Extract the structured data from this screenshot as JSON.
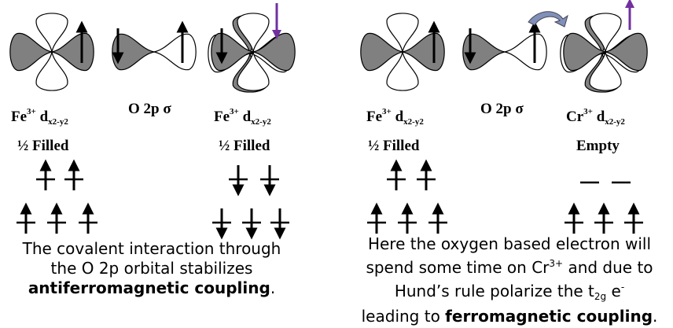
{
  "colors": {
    "lobe_dark": "#808080",
    "lobe_light": "#ffffff",
    "spin_arrow": "#000000",
    "highlight_arrow": "#7030a0",
    "hop_arrow": "#8090b8"
  },
  "left": {
    "fe1": {
      "ion": "Fe",
      "charge": "3+",
      "orbital": "d",
      "orbital_sub": "x2-y2",
      "fill": "½ Filled"
    },
    "o": {
      "label": "O 2p σ"
    },
    "fe2": {
      "ion": "Fe",
      "charge": "3+",
      "orbital": "d",
      "orbital_sub": "x2-y2",
      "fill": "½ Filled"
    },
    "caption": {
      "line1": "The covalent interaction through",
      "line2": "the O 2p orbital stabilizes",
      "line3_bold": "antiferromagnetic coupling",
      "line3_end": "."
    }
  },
  "right": {
    "fe": {
      "ion": "Fe",
      "charge": "3+",
      "orbital": "d",
      "orbital_sub": "x2-y2",
      "fill": "½ Filled"
    },
    "o": {
      "label": "O 2p σ"
    },
    "cr": {
      "ion": "Cr",
      "charge": "3+",
      "orbital": "d",
      "orbital_sub": "x2-y2",
      "fill": "Empty"
    },
    "caption": {
      "line1": "Here the oxygen based electron will",
      "line2_a": "spend some time on Cr",
      "line2_sup": "3+",
      "line2_b": " and due to",
      "line3": "Hund’s rule polarize the t",
      "line3_sub": "2g",
      "line3_e": " e",
      "line3_sup": "-",
      "line4_a": "leading to ",
      "line4_bold": "ferromagnetic coupling",
      "line4_end": "."
    }
  }
}
